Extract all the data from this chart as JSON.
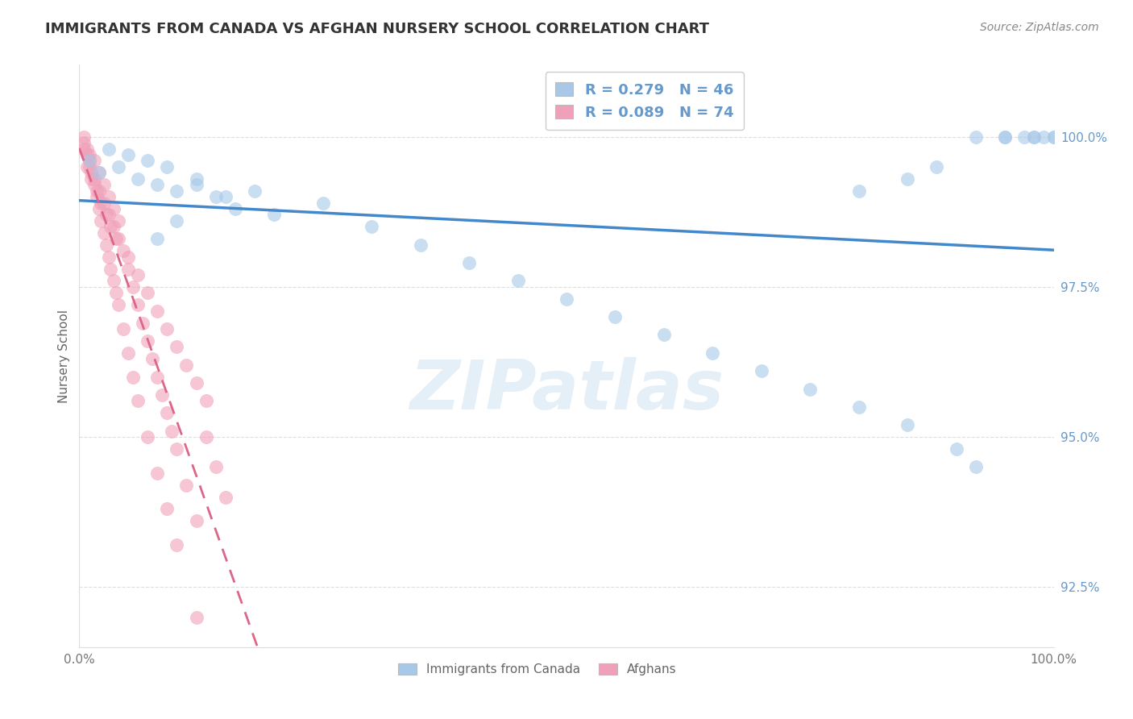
{
  "title": "IMMIGRANTS FROM CANADA VS AFGHAN NURSERY SCHOOL CORRELATION CHART",
  "source": "Source: ZipAtlas.com",
  "ylabel": "Nursery School",
  "watermark": "ZIPatlas",
  "legend_r_blue": "R = 0.279",
  "legend_n_blue": "N = 46",
  "legend_r_pink": "R = 0.089",
  "legend_n_pink": "N = 74",
  "legend_label_blue": "Immigrants from Canada",
  "legend_label_pink": "Afghans",
  "blue_color": "#a8c8e8",
  "pink_color": "#f0a0b8",
  "blue_line_color": "#4488cc",
  "pink_line_color": "#dd6688",
  "ytick_color": "#6699cc",
  "text_color": "#333333",
  "source_color": "#888888",
  "grid_color": "#dddddd",
  "xlim": [
    0,
    100
  ],
  "ylim": [
    91.5,
    101.2
  ],
  "yticks": [
    92.5,
    95.0,
    97.5,
    100.0
  ],
  "blue_x": [
    1,
    2,
    3,
    4,
    5,
    6,
    7,
    8,
    9,
    10,
    12,
    14,
    16,
    18,
    20,
    25,
    30,
    35,
    40,
    45,
    50,
    55,
    60,
    65,
    70,
    75,
    80,
    85,
    90,
    92,
    95,
    97,
    98,
    99,
    100,
    100,
    98,
    95,
    92,
    88,
    85,
    80,
    15,
    12,
    10,
    8
  ],
  "blue_y": [
    99.6,
    99.4,
    99.8,
    99.5,
    99.7,
    99.3,
    99.6,
    99.2,
    99.5,
    99.1,
    99.3,
    99.0,
    98.8,
    99.1,
    98.7,
    98.9,
    98.5,
    98.2,
    97.9,
    97.6,
    97.3,
    97.0,
    96.7,
    96.4,
    96.1,
    95.8,
    95.5,
    95.2,
    94.8,
    94.5,
    100.0,
    100.0,
    100.0,
    100.0,
    100.0,
    100.0,
    100.0,
    100.0,
    100.0,
    99.5,
    99.3,
    99.1,
    99.0,
    99.2,
    98.6,
    98.3
  ],
  "pink_x": [
    0.5,
    0.8,
    1.0,
    1.2,
    1.5,
    1.8,
    2.0,
    2.2,
    2.5,
    2.8,
    3.0,
    3.2,
    3.5,
    3.8,
    4.0,
    4.5,
    5.0,
    5.5,
    6.0,
    6.5,
    7.0,
    7.5,
    8.0,
    8.5,
    9.0,
    9.5,
    10.0,
    11.0,
    12.0,
    13.0,
    14.0,
    15.0,
    0.5,
    0.8,
    1.0,
    1.2,
    1.5,
    1.8,
    2.0,
    2.2,
    2.5,
    2.8,
    3.0,
    3.2,
    3.5,
    3.8,
    4.0,
    4.5,
    5.0,
    5.5,
    6.0,
    7.0,
    8.0,
    9.0,
    10.0,
    12.0,
    0.5,
    0.8,
    1.0,
    1.5,
    2.0,
    2.5,
    3.0,
    3.5,
    4.0,
    5.0,
    6.0,
    7.0,
    8.0,
    9.0,
    10.0,
    11.0,
    12.0,
    13.0
  ],
  "pink_y": [
    99.8,
    99.5,
    99.7,
    99.3,
    99.6,
    99.1,
    99.4,
    98.9,
    99.2,
    98.7,
    99.0,
    98.5,
    98.8,
    98.3,
    98.6,
    98.1,
    97.8,
    97.5,
    97.2,
    96.9,
    96.6,
    96.3,
    96.0,
    95.7,
    95.4,
    95.1,
    94.8,
    94.2,
    93.6,
    95.0,
    94.5,
    94.0,
    100.0,
    99.8,
    99.6,
    99.4,
    99.2,
    99.0,
    98.8,
    98.6,
    98.4,
    98.2,
    98.0,
    97.8,
    97.6,
    97.4,
    97.2,
    96.8,
    96.4,
    96.0,
    95.6,
    95.0,
    94.4,
    93.8,
    93.2,
    92.0,
    99.9,
    99.7,
    99.5,
    99.3,
    99.1,
    98.9,
    98.7,
    98.5,
    98.3,
    98.0,
    97.7,
    97.4,
    97.1,
    96.8,
    96.5,
    96.2,
    95.9,
    95.6
  ]
}
